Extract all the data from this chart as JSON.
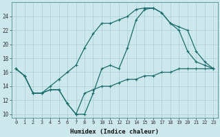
{
  "title": "",
  "xlabel": "Humidex (Indice chaleur)",
  "ylabel": "",
  "bg_color": "#cce8ec",
  "line_color": "#1a6b6b",
  "grid_color": "#a8cdd4",
  "xlim": [
    -0.5,
    23.5
  ],
  "ylim": [
    9.5,
    26
  ],
  "yticks": [
    10,
    12,
    14,
    16,
    18,
    20,
    22,
    24
  ],
  "xticks": [
    0,
    1,
    2,
    3,
    4,
    5,
    6,
    7,
    8,
    9,
    10,
    11,
    12,
    13,
    14,
    15,
    16,
    17,
    18,
    19,
    20,
    21,
    22,
    23
  ],
  "line1_x": [
    0,
    1,
    2,
    3,
    4,
    5,
    6,
    7,
    8,
    9,
    10,
    11,
    12,
    13,
    14,
    15,
    16,
    17,
    18,
    19,
    20,
    21,
    22,
    23
  ],
  "line1_y": [
    16.5,
    15.5,
    13.0,
    13.0,
    13.5,
    13.5,
    11.5,
    10.0,
    10.0,
    13.0,
    16.5,
    17.0,
    16.5,
    19.5,
    23.5,
    25.0,
    25.2,
    24.5,
    23.0,
    22.0,
    19.0,
    17.5,
    17.0,
    16.5
  ],
  "line2_x": [
    0,
    1,
    2,
    3,
    4,
    5,
    6,
    7,
    8,
    9,
    10,
    11,
    12,
    13,
    14,
    15,
    16,
    17,
    18,
    19,
    20,
    21,
    22,
    23
  ],
  "line2_y": [
    16.5,
    15.5,
    13.0,
    13.0,
    14.0,
    15.0,
    16.0,
    17.0,
    19.5,
    21.5,
    23.0,
    23.0,
    23.5,
    24.0,
    25.0,
    25.2,
    25.2,
    24.5,
    23.0,
    22.5,
    22.0,
    19.0,
    17.5,
    16.5
  ],
  "line3_x": [
    0,
    1,
    2,
    3,
    4,
    5,
    6,
    7,
    8,
    9,
    10,
    11,
    12,
    13,
    14,
    15,
    16,
    17,
    18,
    19,
    20,
    21,
    22,
    23
  ],
  "line3_y": [
    16.5,
    15.5,
    13.0,
    13.0,
    13.5,
    13.5,
    11.5,
    10.0,
    13.0,
    13.5,
    14.0,
    14.0,
    14.5,
    15.0,
    15.0,
    15.5,
    15.5,
    16.0,
    16.0,
    16.5,
    16.5,
    16.5,
    16.5,
    16.5
  ]
}
